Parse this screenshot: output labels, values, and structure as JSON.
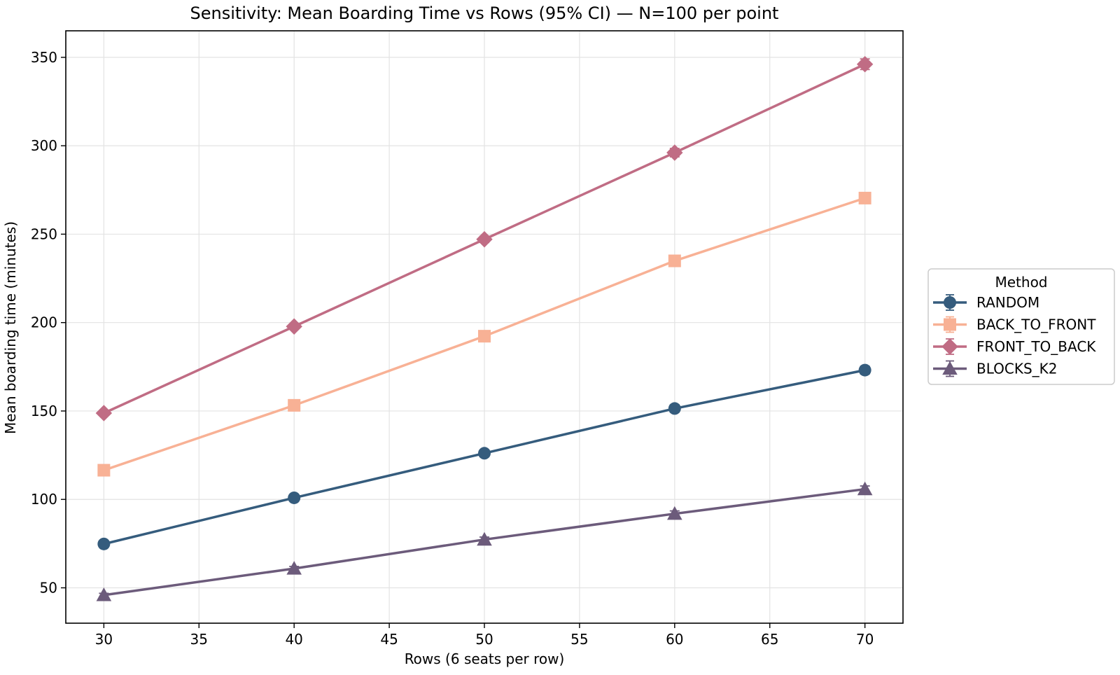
{
  "chart_data": {
    "type": "line",
    "title": "Sensitivity: Mean Boarding Time vs Rows (95% CI) — N=100 per point",
    "xlabel": "Rows (6 seats per row)",
    "ylabel": "Mean boarding time (minutes)",
    "xlim": [
      28,
      72
    ],
    "ylim": [
      30,
      365
    ],
    "xticks": [
      30,
      35,
      40,
      45,
      50,
      55,
      60,
      65,
      70
    ],
    "yticks": [
      50,
      100,
      150,
      200,
      250,
      300,
      350
    ],
    "grid": true,
    "error_bars": true,
    "legend": {
      "title": "Method",
      "placement": "outside-right"
    },
    "x": [
      30,
      40,
      50,
      60,
      70
    ],
    "series": [
      {
        "name": "RANDOM",
        "color": "#355c7d",
        "marker": "circle",
        "values": [
          74.8,
          100.9,
          126.1,
          151.4,
          173.1
        ],
        "ci": [
          1.5,
          1.6,
          1.8,
          2.0,
          2.2
        ]
      },
      {
        "name": "BACK_TO_FRONT",
        "color": "#f8b195",
        "marker": "square",
        "values": [
          116.5,
          153.2,
          192.3,
          234.9,
          270.4
        ],
        "ci": [
          1.8,
          2.0,
          2.2,
          2.5,
          2.8
        ]
      },
      {
        "name": "FRONT_TO_BACK",
        "color": "#c06c84",
        "marker": "diamond",
        "values": [
          148.8,
          197.8,
          247.1,
          296.1,
          346.1
        ],
        "ci": [
          1.2,
          1.4,
          1.8,
          2.4,
          3.0
        ]
      },
      {
        "name": "BLOCKS_K2",
        "color": "#6c5b7b",
        "marker": "triangle",
        "values": [
          45.9,
          60.9,
          77.3,
          91.9,
          105.8
        ],
        "ci": [
          1.0,
          1.2,
          1.4,
          1.6,
          1.8
        ]
      }
    ]
  }
}
